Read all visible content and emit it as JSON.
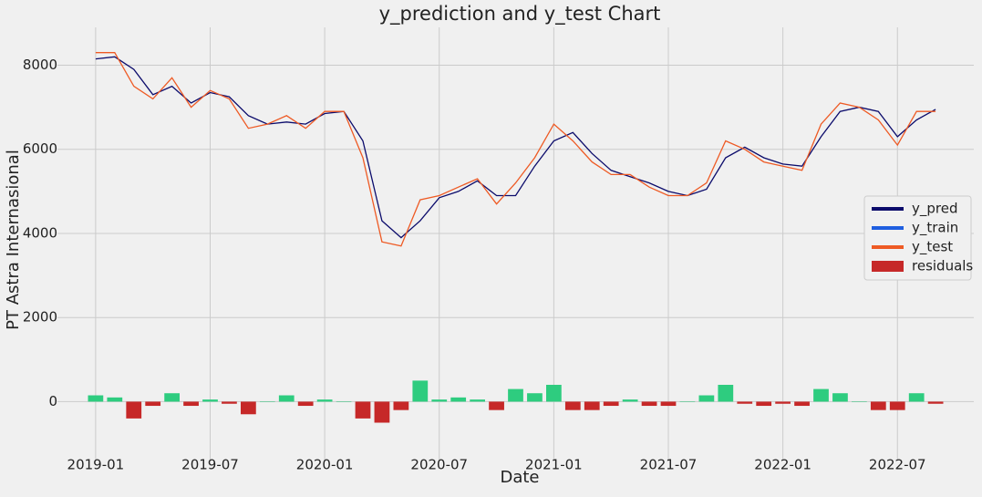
{
  "chart_data": {
    "type": "line",
    "title": "y_prediction and y_test Chart",
    "x_label": "Date",
    "y_label": "PT Astra Internasional",
    "x": [
      "2019-01",
      "2019-02",
      "2019-03",
      "2019-04",
      "2019-05",
      "2019-06",
      "2019-07",
      "2019-08",
      "2019-09",
      "2019-10",
      "2019-11",
      "2019-12",
      "2020-01",
      "2020-02",
      "2020-03",
      "2020-04",
      "2020-05",
      "2020-06",
      "2020-07",
      "2020-08",
      "2020-09",
      "2020-10",
      "2020-11",
      "2020-12",
      "2021-01",
      "2021-02",
      "2021-03",
      "2021-04",
      "2021-05",
      "2021-06",
      "2021-07",
      "2021-08",
      "2021-09",
      "2021-10",
      "2021-11",
      "2021-12",
      "2022-01",
      "2022-02",
      "2022-03",
      "2022-04",
      "2022-05",
      "2022-06",
      "2022-07",
      "2022-08",
      "2022-09"
    ],
    "series": [
      {
        "name": "y_pred",
        "color": "#0b0b6b",
        "values": [
          8150,
          8200,
          7900,
          7300,
          7500,
          7100,
          7350,
          7250,
          6800,
          6600,
          6650,
          6600,
          6850,
          6900,
          6200,
          4300,
          3900,
          4300,
          4850,
          5000,
          5250,
          4900,
          4900,
          5600,
          6200,
          6400,
          5900,
          5500,
          5350,
          5200,
          5000,
          4900,
          5050,
          5800,
          6050,
          5800,
          5650,
          5600,
          6300,
          6900,
          7000,
          6900,
          6300,
          6700,
          6950
        ]
      },
      {
        "name": "y_train",
        "color": "#1f5fe0",
        "values": [
          null,
          null,
          null,
          null,
          null,
          null,
          null,
          null,
          null,
          null,
          null,
          null,
          null,
          null,
          null,
          null,
          null,
          null,
          null,
          null,
          null,
          null,
          null,
          null,
          null,
          null,
          null,
          null,
          null,
          null,
          null,
          null,
          null,
          null,
          null,
          null,
          null,
          null,
          null,
          null,
          null,
          null,
          null,
          null,
          null
        ]
      },
      {
        "name": "y_test",
        "color": "#ee5a24",
        "values": [
          8300,
          8300,
          7500,
          7200,
          7700,
          7000,
          7400,
          7200,
          6500,
          6600,
          6800,
          6500,
          6900,
          6900,
          5800,
          3800,
          3700,
          4800,
          4900,
          5100,
          5300,
          4700,
          5200,
          5800,
          6600,
          6200,
          5700,
          5400,
          5400,
          5100,
          4900,
          4900,
          5200,
          6200,
          6000,
          5700,
          5600,
          5500,
          6600,
          7100,
          7000,
          6700,
          6100,
          6900,
          6900
        ]
      },
      {
        "name": "residuals",
        "type": "bar",
        "color": "#c62828",
        "positive_color": "#2ecc7f",
        "values": [
          150,
          100,
          -400,
          -100,
          200,
          -100,
          50,
          -50,
          -300,
          0,
          150,
          -100,
          50,
          0,
          -400,
          -500,
          -200,
          500,
          50,
          100,
          50,
          -200,
          300,
          200,
          400,
          -200,
          -200,
          -100,
          50,
          -100,
          -100,
          0,
          150,
          400,
          -50,
          -100,
          -50,
          -100,
          300,
          200,
          0,
          -200,
          -200,
          200,
          -50
        ]
      }
    ],
    "xlim": [
      "2018-11",
      "2022-11"
    ],
    "xticks": [
      "2019-01",
      "2019-07",
      "2020-01",
      "2020-07",
      "2021-01",
      "2021-07",
      "2022-01",
      "2022-07"
    ],
    "ylim": [
      -1400,
      8900
    ],
    "yticks": [
      0,
      2000,
      4000,
      6000,
      8000
    ],
    "grid": true,
    "legend": "center right"
  }
}
